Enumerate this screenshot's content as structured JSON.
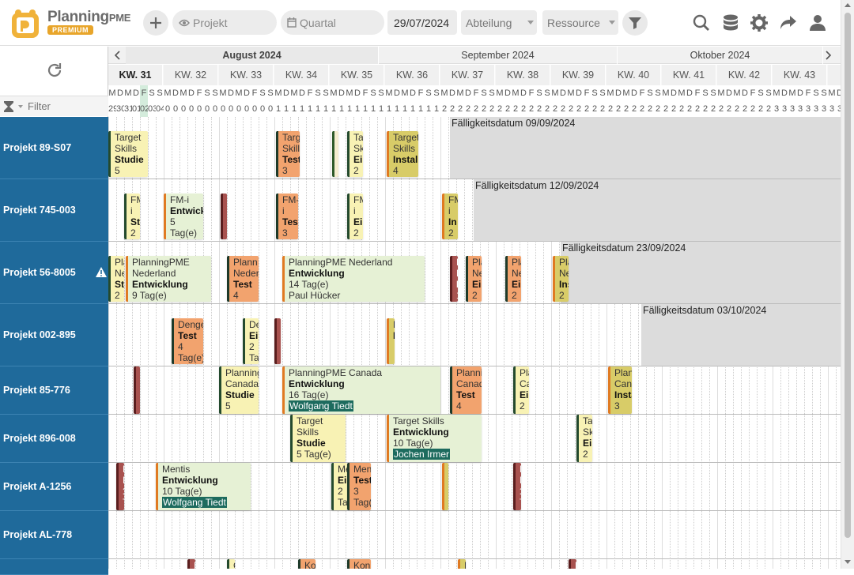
{
  "app": {
    "brand": "Planning",
    "brand_suffix": "PME",
    "edition": "PREMIUM"
  },
  "toolbar": {
    "project_placeholder": "Projekt",
    "period_placeholder": "Quartal",
    "date_value": "29/07/2024",
    "department_placeholder": "Abteilung",
    "resource_placeholder": "Ressource",
    "icons": [
      "add-icon",
      "eye-icon",
      "calendar-icon",
      "filter-icon",
      "search-icon",
      "database-icon",
      "gear-icon",
      "share-icon",
      "user-icon"
    ]
  },
  "left": {
    "filter_placeholder": "Filter"
  },
  "timeline": {
    "months": [
      {
        "label": "August 2024",
        "current": true
      },
      {
        "label": "September 2024",
        "current": false
      },
      {
        "label": "Oktober 2024",
        "current": false
      }
    ],
    "weeks": [
      {
        "label": "KW. 31",
        "current": true
      },
      {
        "label": "KW. 32"
      },
      {
        "label": "KW. 33"
      },
      {
        "label": "KW. 34"
      },
      {
        "label": "KW. 35"
      },
      {
        "label": "KW. 36"
      },
      {
        "label": "KW. 37"
      },
      {
        "label": "KW. 38"
      },
      {
        "label": "KW. 39"
      },
      {
        "label": "KW. 40"
      },
      {
        "label": "KW. 41"
      },
      {
        "label": "KW. 42"
      },
      {
        "label": "KW. 43"
      },
      {
        "label": "KW"
      }
    ],
    "day_letters": [
      "M",
      "D",
      "M",
      "D",
      "F",
      "S",
      "S"
    ],
    "today_index": 4,
    "first_week_days": [
      "29",
      "30",
      "31",
      "01",
      "02",
      "03",
      "04"
    ]
  },
  "rows": [
    {
      "project": "Projekt 89-S07",
      "due": "Fälligkeitsdatum 09/09/2024",
      "tasks": [
        {
          "lines": [
            "Target",
            "Skills"
          ],
          "bold": "Studie",
          "extra": [
            "5"
          ],
          "color": "yellow"
        },
        {
          "lines": [
            "Targ",
            "Skill"
          ],
          "bold": "Test",
          "extra": [
            "3"
          ],
          "color": "orange"
        },
        {
          "lines": [
            "0"
          ],
          "bold": "A",
          "extra": [
            "2"
          ],
          "color": "lgreen"
        },
        {
          "lines": [
            "Ta",
            "Sk"
          ],
          "bold": "Ei",
          "extra": [
            "2"
          ],
          "color": "yellow"
        },
        {
          "lines": [
            "Target",
            "Skills"
          ],
          "bold": "Install",
          "extra": [
            "4"
          ],
          "color": "olive"
        }
      ]
    },
    {
      "project": "Projekt 745-003",
      "due": "Fälligkeitsdatum 12/09/2024",
      "tasks": [
        {
          "lines": [
            "FM",
            "i"
          ],
          "bold": "St",
          "extra": [
            "2"
          ],
          "color": "yellow"
        },
        {
          "lines": [
            "FM-i"
          ],
          "bold": "Entwickl",
          "extra": [
            "5",
            "Tag(e)"
          ],
          "color": "green"
        },
        {
          "lines": [
            "F",
            "i"
          ],
          "bold": "M",
          "extra": [],
          "color": "red"
        },
        {
          "lines": [
            "FM-",
            "i"
          ],
          "bold": "Test",
          "extra": [
            "3"
          ],
          "color": "orange"
        },
        {
          "lines": [
            "FM",
            "i"
          ],
          "bold": "Ei",
          "extra": [
            "2"
          ],
          "color": "yellow"
        },
        {
          "lines": [
            "FM",
            "i"
          ],
          "bold": "In",
          "extra": [
            "2"
          ],
          "color": "olive"
        }
      ]
    },
    {
      "project": "Projekt 56-8005",
      "due": "Fälligkeitsdatum 23/09/2024",
      "warning": true,
      "tasks": [
        {
          "lines": [
            "Pla",
            "Ne"
          ],
          "bold": "Stu",
          "extra": [
            "2"
          ],
          "color": "yellow"
        },
        {
          "lines": [
            "PlanningPME",
            "Nederland"
          ],
          "bold": "Entwicklung",
          "extra": [
            "9 Tag(e)"
          ],
          "color": "green"
        },
        {
          "lines": [
            "Plann",
            "Neder"
          ],
          "bold": "Test",
          "extra": [
            "4"
          ],
          "color": "orange"
        },
        {
          "lines": [
            "PlanningPME Nederland"
          ],
          "bold": "Entwicklung",
          "extra": [
            "14 Tag(e)",
            "Paul Hücker"
          ],
          "color": "green"
        },
        {
          "lines": [
            "P",
            "N"
          ],
          "bold": "M",
          "extra": [
            "1"
          ],
          "color": "red"
        },
        {
          "lines": [
            "Pla",
            "Ne"
          ],
          "bold": "Ei",
          "extra": [
            "2"
          ],
          "color": "orange"
        },
        {
          "lines": [
            "Pla",
            "Ne"
          ],
          "bold": "Ei",
          "extra": [
            "2"
          ],
          "color": "orange"
        },
        {
          "lines": [
            "Pla",
            "Ne"
          ],
          "bold": "Ins",
          "extra": [
            "2"
          ],
          "color": "olive"
        }
      ]
    },
    {
      "project": "Projekt 002-895",
      "due": "Fälligkeitsdatum 03/10/2024",
      "tasks": [
        {
          "lines": [
            "Denge"
          ],
          "bold": "Test",
          "extra": [
            "4",
            "Tag(e)"
          ],
          "color": "orange"
        },
        {
          "lines": [
            "De"
          ],
          "bold": "Ei",
          "extra": [
            "2",
            "Ta"
          ],
          "color": "yellow"
        },
        {
          "lines": [
            "I"
          ],
          "bold": "I",
          "extra": [],
          "color": "red"
        },
        {
          "lines": [
            "D"
          ],
          "bold": "I",
          "extra": [],
          "color": "olive"
        }
      ]
    },
    {
      "project": "Projekt 85-776",
      "due": "",
      "tasks": [
        {
          "lines": [
            "P",
            "C"
          ],
          "bold": "M",
          "extra": [
            "1"
          ],
          "color": "red"
        },
        {
          "lines": [
            "Planning",
            "Canada"
          ],
          "bold": "Studie",
          "extra": [
            "5"
          ],
          "color": "yellow"
        },
        {
          "lines": [
            "PlanningPME Canada"
          ],
          "bold": "Entwicklung",
          "extra": [
            "16 Tag(e)",
            "Wolfgang Tiedt"
          ],
          "color": "green"
        },
        {
          "lines": [
            "Planni",
            "Canad"
          ],
          "bold": "Test",
          "extra": [
            "4"
          ],
          "color": "orange"
        },
        {
          "lines": [
            "Pla",
            "Ca"
          ],
          "bold": "Ei",
          "extra": [
            "2"
          ],
          "color": "yellow"
        },
        {
          "lines": [
            "Plan",
            "Cana"
          ],
          "bold": "Insta",
          "extra": [
            "3"
          ],
          "color": "olive"
        }
      ]
    },
    {
      "project": "Projekt 896-008",
      "due": "",
      "tasks": [
        {
          "lines": [
            "Target",
            "Skills"
          ],
          "bold": "Studie",
          "extra": [
            "5 Tag(e)"
          ],
          "color": "yellow"
        },
        {
          "lines": [
            "Target Skills"
          ],
          "bold": "Entwicklung",
          "extra": [
            "10 Tag(e)",
            "Jochen Irmer"
          ],
          "color": "green"
        },
        {
          "lines": [
            "Ta",
            "Sk"
          ],
          "bold": "Ei",
          "extra": [
            "2"
          ],
          "color": "yellow"
        }
      ]
    },
    {
      "project": "Projekt A-1256",
      "due": "",
      "tasks": [
        {
          "lines": [
            "M",
            "M"
          ],
          "bold": "1",
          "extra": [
            "T"
          ],
          "color": "red"
        },
        {
          "lines": [
            "Mentis"
          ],
          "bold": "Entwicklung",
          "extra": [
            "10 Tag(e)",
            "Wolfgang Tiedt"
          ],
          "color": "green"
        },
        {
          "lines": [
            "Me"
          ],
          "bold": "Ei",
          "extra": [
            "2",
            "Ta"
          ],
          "color": "yellow"
        },
        {
          "lines": [
            "Men"
          ],
          "bold": "Test",
          "extra": [
            "3",
            "Tag("
          ],
          "color": "orange"
        },
        {
          "lines": [
            "I"
          ],
          "bold": "I",
          "extra": [],
          "color": "olive"
        },
        {
          "lines": [
            "M",
            "M"
          ],
          "bold": "1",
          "extra": [
            "T"
          ],
          "color": "red"
        }
      ]
    },
    {
      "project": "Projekt AL-778",
      "due": "",
      "tasks": []
    },
    {
      "project": "",
      "due": "",
      "tasks": [
        {
          "lines": [
            "K"
          ],
          "bold": "",
          "extra": [],
          "color": "red"
        },
        {
          "lines": [
            "C"
          ],
          "bold": "",
          "extra": [],
          "color": "yellow"
        },
        {
          "lines": [
            "Ko"
          ],
          "bold": "",
          "extra": [],
          "color": "orange"
        },
        {
          "lines": [
            "Konz"
          ],
          "bold": "",
          "extra": [],
          "color": "orange"
        },
        {
          "lines": [
            "I"
          ],
          "bold": "",
          "extra": [],
          "color": "olive"
        },
        {
          "lines": [
            "K"
          ],
          "bold": "",
          "extra": [],
          "color": "red"
        }
      ]
    }
  ],
  "colors": {
    "project_bg": "#1f6a9b",
    "accent": "#e8a52a",
    "resource_tag": "#1d6b5e"
  }
}
